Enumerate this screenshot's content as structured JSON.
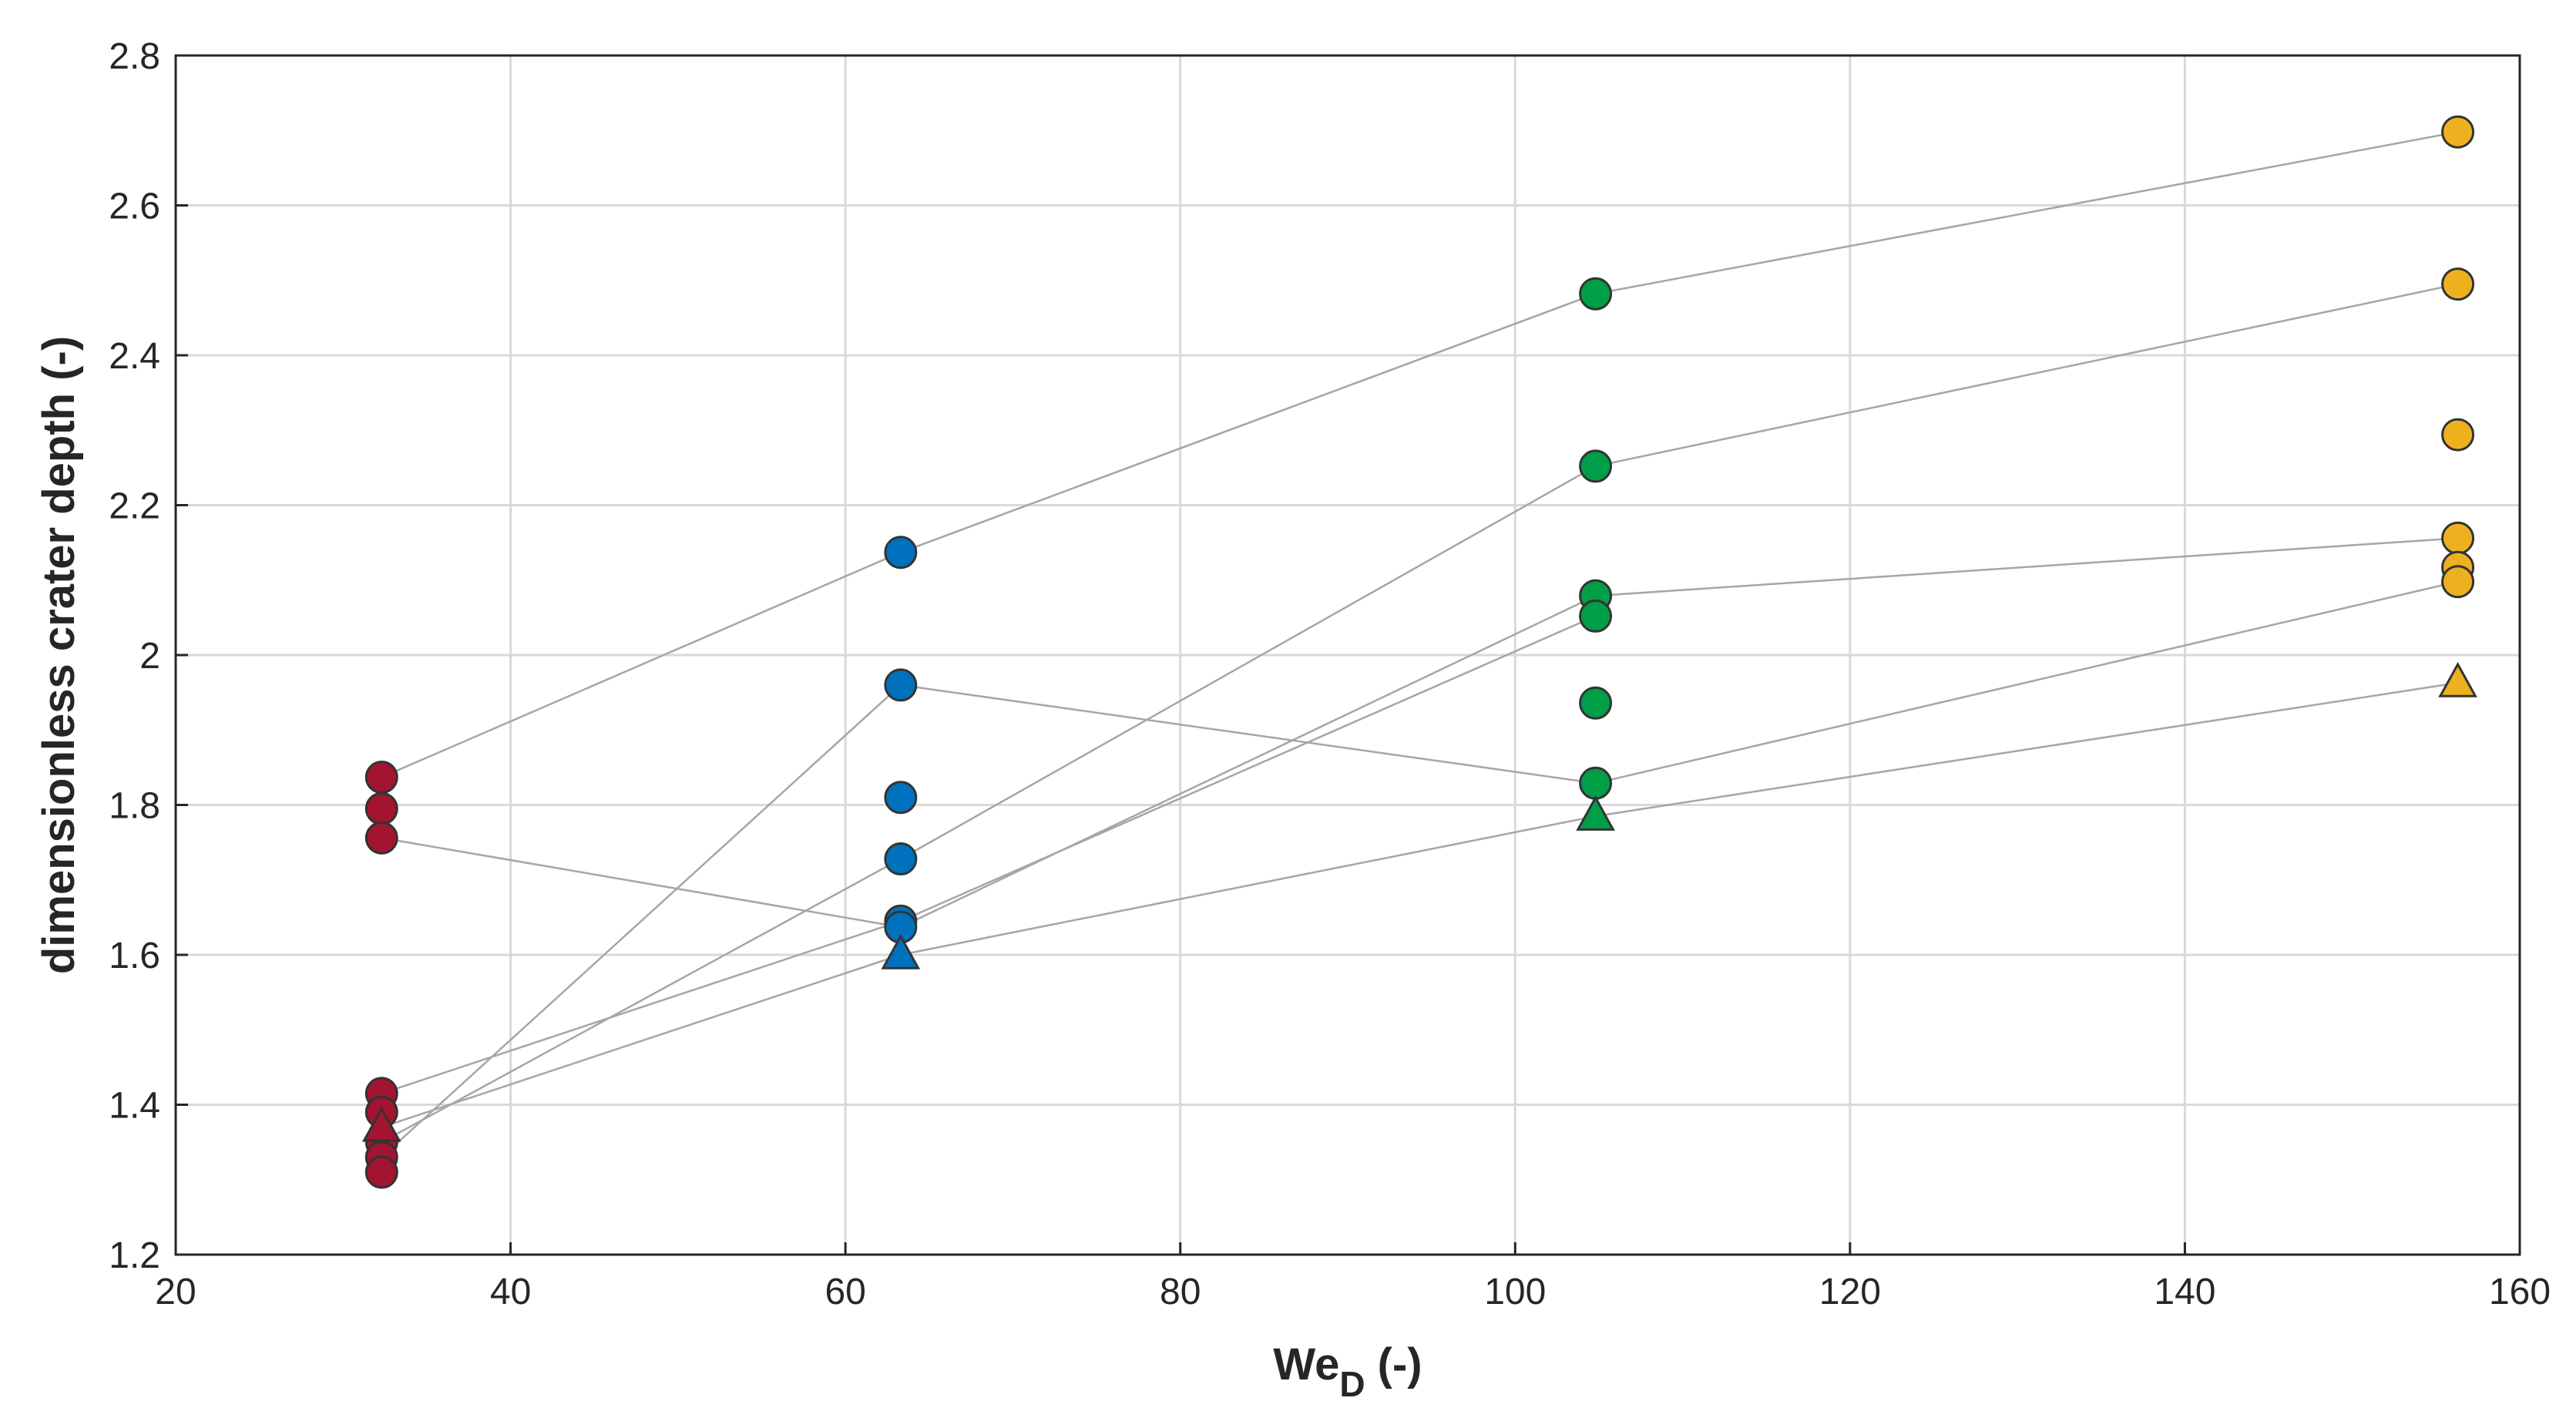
{
  "chart_data": {
    "type": "scatter",
    "xlabel": "We",
    "xlabel_sub": "D",
    "xlabel_unit": " (-)",
    "ylabel": "dimensionless crater depth (-)",
    "xlim": [
      20,
      160
    ],
    "ylim": [
      1.2,
      2.8
    ],
    "xticks": [
      20,
      40,
      60,
      80,
      100,
      120,
      140,
      160
    ],
    "yticks": [
      1.2,
      1.4,
      1.6,
      1.8,
      2,
      2.2,
      2.4,
      2.6,
      2.8
    ],
    "xtick_labels": [
      "20",
      "40",
      "60",
      "80",
      "100",
      "120",
      "140",
      "160"
    ],
    "ytick_labels": [
      "1.2",
      "1.4",
      "1.6",
      "1.8",
      "2",
      "2.2",
      "2.4",
      "2.6",
      "2.8"
    ],
    "grid": true,
    "colors": {
      "we32": "#a2142f",
      "we63": "#0072bd",
      "we105": "#009e47",
      "we156": "#edb120",
      "marker_edge": "#333333",
      "line": "#a6a6a6",
      "grid": "#d9d9d9",
      "axis": "#262626"
    },
    "series": [
      {
        "color_key": "we32",
        "points": [
          {
            "x": 32.3,
            "y": 1.837,
            "marker": "circle"
          },
          {
            "x": 32.3,
            "y": 1.795,
            "marker": "circle"
          },
          {
            "x": 32.3,
            "y": 1.756,
            "marker": "circle"
          },
          {
            "x": 32.3,
            "y": 1.415,
            "marker": "circle"
          },
          {
            "x": 32.3,
            "y": 1.39,
            "marker": "circle"
          },
          {
            "x": 32.3,
            "y": 1.35,
            "marker": "circle"
          },
          {
            "x": 32.3,
            "y": 1.33,
            "marker": "circle"
          },
          {
            "x": 32.3,
            "y": 1.31,
            "marker": "circle"
          },
          {
            "x": 32.3,
            "y": 1.37,
            "marker": "triangle"
          }
        ]
      },
      {
        "color_key": "we63",
        "points": [
          {
            "x": 63.3,
            "y": 2.137,
            "marker": "circle"
          },
          {
            "x": 63.3,
            "y": 1.96,
            "marker": "circle"
          },
          {
            "x": 63.3,
            "y": 1.81,
            "marker": "circle"
          },
          {
            "x": 63.3,
            "y": 1.728,
            "marker": "circle"
          },
          {
            "x": 63.3,
            "y": 1.645,
            "marker": "circle"
          },
          {
            "x": 63.3,
            "y": 1.637,
            "marker": "circle"
          },
          {
            "x": 63.3,
            "y": 1.6,
            "marker": "triangle"
          }
        ]
      },
      {
        "color_key": "we105",
        "points": [
          {
            "x": 104.8,
            "y": 2.482,
            "marker": "circle"
          },
          {
            "x": 104.8,
            "y": 2.252,
            "marker": "circle"
          },
          {
            "x": 104.8,
            "y": 2.079,
            "marker": "circle"
          },
          {
            "x": 104.8,
            "y": 2.052,
            "marker": "circle"
          },
          {
            "x": 104.8,
            "y": 1.936,
            "marker": "circle"
          },
          {
            "x": 104.8,
            "y": 1.829,
            "marker": "circle"
          },
          {
            "x": 104.8,
            "y": 1.785,
            "marker": "triangle"
          }
        ]
      },
      {
        "color_key": "we156",
        "points": [
          {
            "x": 156.3,
            "y": 2.698,
            "marker": "circle"
          },
          {
            "x": 156.3,
            "y": 2.495,
            "marker": "circle"
          },
          {
            "x": 156.3,
            "y": 2.294,
            "marker": "circle"
          },
          {
            "x": 156.3,
            "y": 2.156,
            "marker": "circle"
          },
          {
            "x": 156.3,
            "y": 2.117,
            "marker": "circle"
          },
          {
            "x": 156.3,
            "y": 2.098,
            "marker": "circle"
          },
          {
            "x": 156.3,
            "y": 1.963,
            "marker": "triangle"
          }
        ]
      }
    ],
    "connecting_lines": [
      {
        "x": [
          32.3,
          63.3,
          104.8,
          156.3
        ],
        "y": [
          1.837,
          2.137,
          2.482,
          2.698
        ]
      },
      {
        "x": [
          32.3,
          63.3,
          104.8,
          156.3
        ],
        "y": [
          1.756,
          1.637,
          2.079,
          2.156
        ]
      },
      {
        "x": [
          32.3,
          63.3,
          104.8,
          156.3
        ],
        "y": [
          1.33,
          1.96,
          1.829,
          2.098
        ]
      },
      {
        "x": [
          32.3,
          63.3,
          104.8,
          156.3
        ],
        "y": [
          1.35,
          1.728,
          2.252,
          2.495
        ]
      },
      {
        "x": [
          32.3,
          63.3,
          104.8
        ],
        "y": [
          1.415,
          1.645,
          2.052
        ]
      },
      {
        "x": [
          32.3,
          63.3,
          104.8,
          156.3
        ],
        "y": [
          1.37,
          1.6,
          1.785,
          1.963
        ]
      }
    ]
  }
}
